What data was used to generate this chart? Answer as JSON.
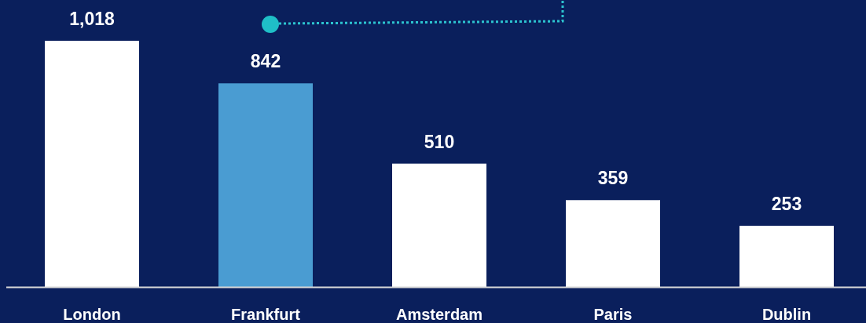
{
  "chart_data": {
    "type": "bar",
    "categories": [
      "London",
      "Frankfurt",
      "Amsterdam",
      "Paris",
      "Dublin"
    ],
    "values": [
      1018,
      842,
      510,
      359,
      253
    ],
    "colors": [
      "#ffffff",
      "#4a9cd2",
      "#ffffff",
      "#ffffff",
      "#ffffff"
    ],
    "value_labels": [
      "1,018",
      "842",
      "510",
      "359",
      "253"
    ]
  }
}
